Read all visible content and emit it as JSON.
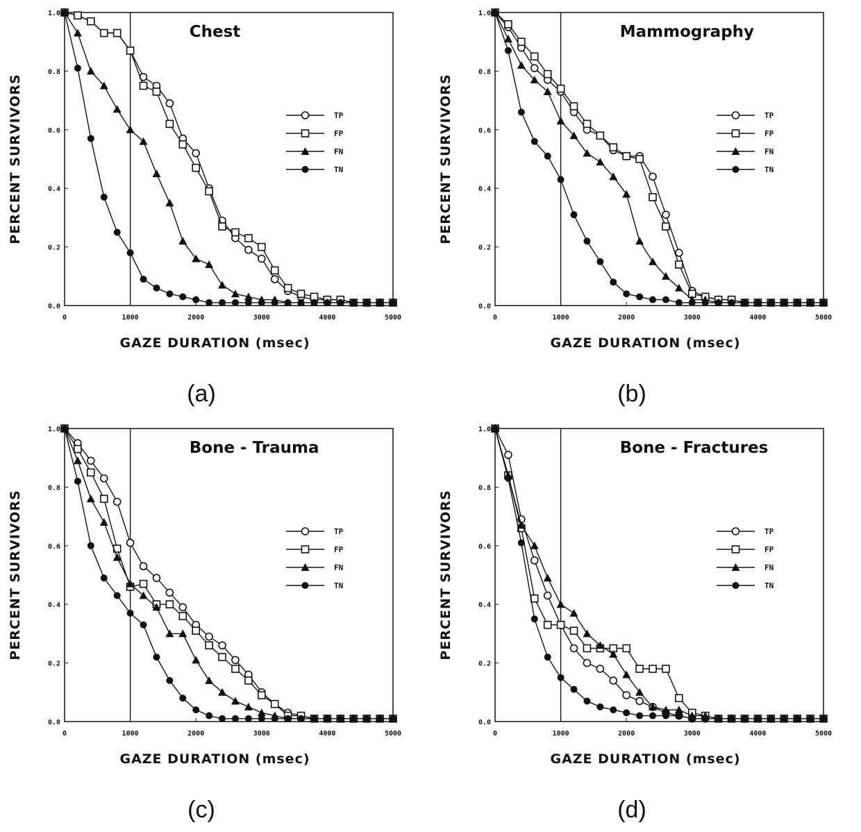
{
  "chart_data": [
    {
      "type": "line",
      "caption": "(a)",
      "title": "Chest",
      "xlabel": "GAZE DURATION (msec)",
      "ylabel": "PERCENT SURVIVORS",
      "xlim": [
        0,
        5000
      ],
      "ylim": [
        0,
        1.0
      ],
      "xticks": [
        "0",
        "1000",
        "2000",
        "3000",
        "4000",
        "5000"
      ],
      "yticks": [
        "0.0",
        "0.2",
        "0.4",
        "0.6",
        "0.8",
        "1.0"
      ],
      "reference_line_x": 1000,
      "legend_position": "right",
      "series": [
        {
          "name": "TP",
          "marker": "open-circle",
          "x": [
            0,
            200,
            400,
            600,
            800,
            1000,
            1200,
            1400,
            1600,
            1800,
            2000,
            2200,
            2400,
            2600,
            2800,
            3000,
            3200,
            3400,
            3600,
            3800,
            4000,
            4200,
            4400,
            4600,
            4800,
            5000
          ],
          "y": [
            1.0,
            0.99,
            0.97,
            0.93,
            0.93,
            0.87,
            0.78,
            0.75,
            0.69,
            0.57,
            0.52,
            0.4,
            0.29,
            0.23,
            0.19,
            0.16,
            0.09,
            0.05,
            0.03,
            0.02,
            0.02,
            0.02,
            0.01,
            0.01,
            0.01,
            0.01
          ]
        },
        {
          "name": "FP",
          "marker": "open-square",
          "x": [
            0,
            200,
            400,
            600,
            800,
            1000,
            1200,
            1400,
            1600,
            1800,
            2000,
            2200,
            2400,
            2600,
            2800,
            3000,
            3200,
            3400,
            3600,
            3800,
            4000,
            4200,
            4400,
            4600,
            4800,
            5000
          ],
          "y": [
            1.0,
            0.99,
            0.97,
            0.93,
            0.93,
            0.87,
            0.75,
            0.73,
            0.62,
            0.55,
            0.47,
            0.39,
            0.27,
            0.25,
            0.23,
            0.2,
            0.12,
            0.06,
            0.04,
            0.03,
            0.02,
            0.02,
            0.01,
            0.01,
            0.01,
            0.01
          ]
        },
        {
          "name": "FN",
          "marker": "filled-triangle",
          "x": [
            0,
            200,
            400,
            600,
            800,
            1000,
            1200,
            1400,
            1600,
            1800,
            2000,
            2200,
            2400,
            2600,
            2800,
            3000,
            3200,
            3400,
            3600,
            3800,
            4000,
            4200,
            4400,
            4600,
            4800,
            5000
          ],
          "y": [
            1.0,
            0.93,
            0.8,
            0.75,
            0.67,
            0.6,
            0.56,
            0.45,
            0.35,
            0.22,
            0.16,
            0.14,
            0.07,
            0.04,
            0.03,
            0.02,
            0.02,
            0.01,
            0.01,
            0.01,
            0.01,
            0.01,
            0.01,
            0.01,
            0.01,
            0.01
          ]
        },
        {
          "name": "TN",
          "marker": "filled-circle",
          "x": [
            0,
            200,
            400,
            600,
            800,
            1000,
            1200,
            1400,
            1600,
            1800,
            2000,
            2200,
            2400,
            2600,
            2800,
            3000,
            3200,
            3400,
            3600,
            3800,
            4000,
            4200,
            4400,
            4600,
            4800,
            5000
          ],
          "y": [
            1.0,
            0.81,
            0.57,
            0.37,
            0.25,
            0.18,
            0.09,
            0.06,
            0.04,
            0.03,
            0.02,
            0.01,
            0.01,
            0.01,
            0.01,
            0.01,
            0.01,
            0.01,
            0.01,
            0.01,
            0.01,
            0.01,
            0.01,
            0.01,
            0.01,
            0.01
          ]
        }
      ]
    },
    {
      "type": "line",
      "caption": "(b)",
      "title": "Mammography",
      "xlabel": "GAZE DURATION (msec)",
      "ylabel": "PERCENT SURVIVORS",
      "xlim": [
        0,
        5000
      ],
      "ylim": [
        0,
        1.0
      ],
      "xticks": [
        "0",
        "1000",
        "2000",
        "3000",
        "4000",
        "5000"
      ],
      "yticks": [
        "0.0",
        "0.2",
        "0.4",
        "0.6",
        "0.8",
        "1.0"
      ],
      "reference_line_x": 1000,
      "legend_position": "right",
      "series": [
        {
          "name": "TP",
          "marker": "open-circle",
          "x": [
            0,
            200,
            400,
            600,
            800,
            1000,
            1200,
            1400,
            1600,
            1800,
            2000,
            2200,
            2400,
            2600,
            2800,
            3000,
            3200,
            3400,
            3600,
            3800,
            4000,
            4200,
            4400,
            4600,
            4800,
            5000
          ],
          "y": [
            1.0,
            0.95,
            0.88,
            0.81,
            0.77,
            0.73,
            0.66,
            0.6,
            0.58,
            0.53,
            0.51,
            0.51,
            0.44,
            0.31,
            0.18,
            0.05,
            0.03,
            0.02,
            0.02,
            0.01,
            0.01,
            0.01,
            0.01,
            0.01,
            0.01,
            0.01
          ]
        },
        {
          "name": "FP",
          "marker": "open-square",
          "x": [
            0,
            200,
            400,
            600,
            800,
            1000,
            1200,
            1400,
            1600,
            1800,
            2000,
            2200,
            2400,
            2600,
            2800,
            3000,
            3200,
            3400,
            3600,
            3800,
            4000,
            4200,
            4400,
            4600,
            4800,
            5000
          ],
          "y": [
            1.0,
            0.96,
            0.9,
            0.85,
            0.79,
            0.74,
            0.68,
            0.62,
            0.58,
            0.54,
            0.51,
            0.5,
            0.37,
            0.27,
            0.14,
            0.04,
            0.03,
            0.02,
            0.02,
            0.01,
            0.01,
            0.01,
            0.01,
            0.01,
            0.01,
            0.01
          ]
        },
        {
          "name": "FN",
          "marker": "filled-triangle",
          "x": [
            0,
            200,
            400,
            600,
            800,
            1000,
            1200,
            1400,
            1600,
            1800,
            2000,
            2200,
            2400,
            2600,
            2800,
            3000,
            3200,
            3400,
            3600,
            3800,
            4000,
            4200,
            4400,
            4600,
            4800,
            5000
          ],
          "y": [
            1.0,
            0.91,
            0.82,
            0.77,
            0.73,
            0.63,
            0.58,
            0.52,
            0.49,
            0.44,
            0.38,
            0.22,
            0.15,
            0.1,
            0.06,
            0.02,
            0.02,
            0.01,
            0.01,
            0.01,
            0.01,
            0.01,
            0.01,
            0.01,
            0.01,
            0.01
          ]
        },
        {
          "name": "TN",
          "marker": "filled-circle",
          "x": [
            0,
            200,
            400,
            600,
            800,
            1000,
            1200,
            1400,
            1600,
            1800,
            2000,
            2200,
            2400,
            2600,
            2800,
            3000,
            3200,
            3400,
            3600,
            3800,
            4000,
            4200,
            4400,
            4600,
            4800,
            5000
          ],
          "y": [
            1.0,
            0.87,
            0.66,
            0.56,
            0.51,
            0.43,
            0.31,
            0.22,
            0.15,
            0.08,
            0.04,
            0.03,
            0.02,
            0.02,
            0.01,
            0.01,
            0.01,
            0.01,
            0.01,
            0.01,
            0.01,
            0.01,
            0.01,
            0.01,
            0.01,
            0.01
          ]
        }
      ]
    },
    {
      "type": "line",
      "caption": "(c)",
      "title": "Bone  -  Trauma",
      "xlabel": "GAZE DURATION (msec)",
      "ylabel": "PERCENT SURVIVORS",
      "xlim": [
        0,
        5000
      ],
      "ylim": [
        0,
        1.0
      ],
      "xticks": [
        "0",
        "1000",
        "2000",
        "3000",
        "4000",
        "5000"
      ],
      "yticks": [
        "0.0",
        "0.2",
        "0.4",
        "0.6",
        "0.8",
        "1.0"
      ],
      "reference_line_x": 1000,
      "legend_position": "right",
      "series": [
        {
          "name": "TP",
          "marker": "open-circle",
          "x": [
            0,
            200,
            400,
            600,
            800,
            1000,
            1200,
            1400,
            1600,
            1800,
            2000,
            2200,
            2400,
            2600,
            2800,
            3000,
            3200,
            3400,
            3600,
            3800,
            4000,
            4200,
            4400,
            4600,
            4800,
            5000
          ],
          "y": [
            1.0,
            0.95,
            0.89,
            0.83,
            0.75,
            0.61,
            0.53,
            0.49,
            0.44,
            0.39,
            0.33,
            0.29,
            0.26,
            0.21,
            0.16,
            0.1,
            0.06,
            0.03,
            0.02,
            0.01,
            0.01,
            0.01,
            0.01,
            0.01,
            0.01,
            0.01
          ]
        },
        {
          "name": "FP",
          "marker": "open-square",
          "x": [
            0,
            200,
            400,
            600,
            800,
            1000,
            1200,
            1400,
            1600,
            1800,
            2000,
            2200,
            2400,
            2600,
            2800,
            3000,
            3200,
            3400,
            3600,
            3800,
            4000,
            4200,
            4400,
            4600,
            4800,
            5000
          ],
          "y": [
            1.0,
            0.93,
            0.85,
            0.76,
            0.59,
            0.46,
            0.47,
            0.4,
            0.4,
            0.36,
            0.31,
            0.26,
            0.22,
            0.18,
            0.14,
            0.09,
            0.06,
            0.02,
            0.02,
            0.01,
            0.01,
            0.01,
            0.01,
            0.01,
            0.01,
            0.01
          ]
        },
        {
          "name": "FN",
          "marker": "filled-triangle",
          "x": [
            0,
            200,
            400,
            600,
            800,
            1000,
            1200,
            1400,
            1600,
            1800,
            2000,
            2200,
            2400,
            2600,
            2800,
            3000,
            3200,
            3400,
            3600,
            3800,
            4000,
            4200,
            4400,
            4600,
            4800,
            5000
          ],
          "y": [
            1.0,
            0.89,
            0.76,
            0.68,
            0.56,
            0.47,
            0.43,
            0.39,
            0.3,
            0.3,
            0.21,
            0.14,
            0.1,
            0.07,
            0.05,
            0.03,
            0.02,
            0.01,
            0.01,
            0.01,
            0.01,
            0.01,
            0.01,
            0.01,
            0.01,
            0.01
          ]
        },
        {
          "name": "TN",
          "marker": "filled-circle",
          "x": [
            0,
            200,
            400,
            600,
            800,
            1000,
            1200,
            1400,
            1600,
            1800,
            2000,
            2200,
            2400,
            2600,
            2800,
            3000,
            3200,
            3400,
            3600,
            3800,
            4000,
            4200,
            4400,
            4600,
            4800,
            5000
          ],
          "y": [
            1.0,
            0.82,
            0.6,
            0.49,
            0.43,
            0.37,
            0.33,
            0.22,
            0.14,
            0.08,
            0.04,
            0.02,
            0.01,
            0.01,
            0.01,
            0.01,
            0.01,
            0.01,
            0.01,
            0.01,
            0.01,
            0.01,
            0.01,
            0.01,
            0.01,
            0.01
          ]
        }
      ]
    },
    {
      "type": "line",
      "caption": "(d)",
      "title": "Bone  -  Fractures",
      "xlabel": "GAZE DURATION (msec)",
      "ylabel": "PERCENT SURVIVORS",
      "xlim": [
        0,
        5000
      ],
      "ylim": [
        0,
        1.0
      ],
      "xticks": [
        "0",
        "1000",
        "2000",
        "3000",
        "4000",
        "5000"
      ],
      "yticks": [
        "0.0",
        "0.2",
        "0.4",
        "0.6",
        "0.8",
        "1.0"
      ],
      "reference_line_x": 1000,
      "legend_position": "right",
      "series": [
        {
          "name": "TP",
          "marker": "open-circle",
          "x": [
            0,
            200,
            400,
            600,
            800,
            1000,
            1200,
            1400,
            1600,
            1800,
            2000,
            2200,
            2400,
            2600,
            2800,
            3000,
            3200,
            3400,
            3600,
            3800,
            4000,
            4200,
            4400,
            4600,
            4800,
            5000
          ],
          "y": [
            1.0,
            0.91,
            0.69,
            0.55,
            0.43,
            0.33,
            0.25,
            0.2,
            0.18,
            0.14,
            0.09,
            0.07,
            0.05,
            0.03,
            0.02,
            0.01,
            0.01,
            0.01,
            0.01,
            0.01,
            0.01,
            0.01,
            0.01,
            0.01,
            0.01,
            0.01
          ]
        },
        {
          "name": "FP",
          "marker": "open-square",
          "x": [
            0,
            200,
            400,
            600,
            800,
            1000,
            1200,
            1400,
            1600,
            1800,
            2000,
            2200,
            2400,
            2600,
            2800,
            3000,
            3200,
            3400,
            3600,
            3800,
            4000,
            4200,
            4400,
            4600,
            4800,
            5000
          ],
          "y": [
            1.0,
            0.84,
            0.66,
            0.42,
            0.33,
            0.33,
            0.31,
            0.25,
            0.25,
            0.25,
            0.25,
            0.18,
            0.18,
            0.18,
            0.08,
            0.03,
            0.02,
            0.01,
            0.01,
            0.01,
            0.01,
            0.01,
            0.01,
            0.01,
            0.01,
            0.01
          ]
        },
        {
          "name": "FN",
          "marker": "filled-triangle",
          "x": [
            0,
            200,
            400,
            600,
            800,
            1000,
            1200,
            1400,
            1600,
            1800,
            2000,
            2200,
            2400,
            2600,
            2800,
            3000,
            3200,
            3400,
            3600,
            3800,
            4000,
            4200,
            4400,
            4600,
            4800,
            5000
          ],
          "y": [
            1.0,
            0.84,
            0.67,
            0.6,
            0.49,
            0.4,
            0.37,
            0.3,
            0.26,
            0.23,
            0.16,
            0.1,
            0.05,
            0.04,
            0.04,
            0.02,
            0.02,
            0.01,
            0.01,
            0.01,
            0.01,
            0.01,
            0.01,
            0.01,
            0.01,
            0.01
          ]
        },
        {
          "name": "TN",
          "marker": "filled-circle",
          "x": [
            0,
            200,
            400,
            600,
            800,
            1000,
            1200,
            1400,
            1600,
            1800,
            2000,
            2200,
            2400,
            2600,
            2800,
            3000,
            3200,
            3400,
            3600,
            3800,
            4000,
            4200,
            4400,
            4600,
            4800,
            5000
          ],
          "y": [
            1.0,
            0.83,
            0.61,
            0.35,
            0.22,
            0.15,
            0.11,
            0.07,
            0.05,
            0.04,
            0.03,
            0.02,
            0.02,
            0.02,
            0.02,
            0.01,
            0.01,
            0.01,
            0.01,
            0.01,
            0.01,
            0.01,
            0.01,
            0.01,
            0.01,
            0.01
          ]
        }
      ]
    }
  ]
}
